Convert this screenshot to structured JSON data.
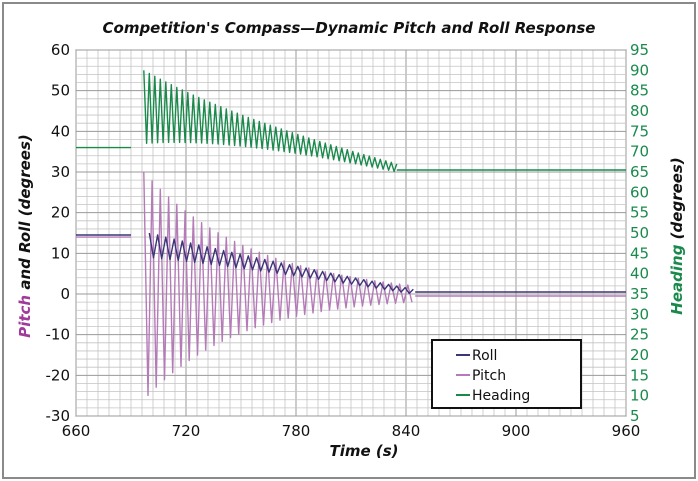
{
  "chart_data": {
    "type": "line",
    "title": "Competition's Compass—Dynamic Pitch and Roll Response",
    "xlabel_main": "Time",
    "xlabel_unit": "(s)",
    "ylabel_left_pitch": "Pitch",
    "ylabel_left_rest": " and Roll (degrees)",
    "ylabel_right_main": "Heading",
    "ylabel_right_unit": "(degrees)",
    "xlim": [
      660,
      960
    ],
    "ylim_left": [
      -30,
      60
    ],
    "ylim_right": [
      5,
      95
    ],
    "x_ticks": [
      "660",
      "720",
      "780",
      "840",
      "900",
      "960"
    ],
    "y_left_ticks": [
      "-30",
      "-20",
      "-10",
      "0",
      "10",
      "20",
      "30",
      "40",
      "50",
      "60"
    ],
    "y_right_ticks": [
      "5",
      "10",
      "15",
      "20",
      "25",
      "30",
      "35",
      "40",
      "45",
      "50",
      "55",
      "60",
      "65",
      "70",
      "75",
      "80",
      "85",
      "90",
      "95"
    ],
    "grid": true,
    "legend_position": "bottom-right",
    "colors": {
      "roll": "#3b3677",
      "pitch": "#b57ab8",
      "heading": "#1a8a4c",
      "pitch_label": "#a0399a",
      "right_axis": "#1a8a4c"
    },
    "series": [
      {
        "name": "Roll",
        "axis": "left",
        "segments": [
          {
            "x": [
              660,
              690
            ],
            "y": [
              14.5,
              14.5
            ]
          },
          {
            "x": [
              700,
              845
            ],
            "y_center_start": 12,
            "y_center_end": 0.5,
            "amp_start": 3,
            "amp_end": 0.6,
            "period": 4.5
          },
          {
            "x": [
              845,
              960
            ],
            "y": [
              0.5,
              0.5
            ]
          }
        ]
      },
      {
        "name": "Pitch",
        "axis": "left",
        "segments": [
          {
            "x": [
              660,
              690
            ],
            "y": [
              14,
              14
            ]
          },
          {
            "x": [
              697,
              845
            ],
            "y_center_start": 2,
            "y_center_end": 0,
            "amp_start": 28,
            "amp_end": 2,
            "period": 4.5
          },
          {
            "x": [
              845,
              960
            ],
            "y": [
              -0.5,
              -0.5
            ]
          }
        ]
      },
      {
        "name": "Heading",
        "axis": "right",
        "segments": [
          {
            "x": [
              660,
              690
            ],
            "y": [
              71,
              71
            ]
          },
          {
            "x": [
              697,
              835
            ],
            "y_center_start": 81,
            "y_center_end": 66,
            "amp_start": 9,
            "amp_end": 1,
            "period": 3
          },
          {
            "x": [
              835,
              960
            ],
            "y": [
              65.5,
              65.5
            ]
          }
        ]
      }
    ]
  }
}
